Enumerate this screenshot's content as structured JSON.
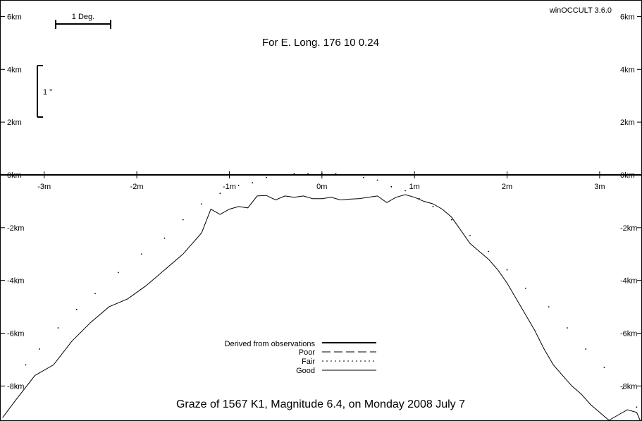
{
  "version": "winOCCULT 3.6.0",
  "header": "For E. Long.  176 10  0.24",
  "footer": "Graze of     1567   K1,  Magnitude   6.4,  on Monday  2008  July   7",
  "scale_bars": {
    "degree_label": "1 Deg.",
    "arcsec_label": "1 ''"
  },
  "legend": [
    {
      "label": "Derived from observations",
      "style": "thick"
    },
    {
      "label": "Poor",
      "style": "dashed"
    },
    {
      "label": "Fair",
      "style": "dotted"
    },
    {
      "label": "Good",
      "style": "solid"
    }
  ],
  "chart_data": {
    "type": "line",
    "xlabel": "",
    "ylabel": "",
    "x_ticks": [
      "-3m",
      "-2m",
      "-1m",
      "0m",
      "1m",
      "2m",
      "3m"
    ],
    "x_tick_values": [
      -3,
      -2,
      -1,
      0,
      1,
      2,
      3
    ],
    "y_ticks": [
      "6km",
      "4km",
      "2km",
      "0km",
      "-2km",
      "-4km",
      "-6km",
      "-8km"
    ],
    "y_tick_values": [
      6,
      4,
      2,
      0,
      -2,
      -4,
      -6,
      -8
    ],
    "xlim": [
      -3.47,
      3.45
    ],
    "ylim": [
      -9.3,
      6.6
    ],
    "series": [
      {
        "name": "Good",
        "style": "solid",
        "x": [
          -3.45,
          -3.3,
          -3.1,
          -2.9,
          -2.7,
          -2.5,
          -2.3,
          -2.1,
          -1.9,
          -1.7,
          -1.5,
          -1.3,
          -1.2,
          -1.1,
          -1.0,
          -0.9,
          -0.8,
          -0.7,
          -0.6,
          -0.5,
          -0.4,
          -0.3,
          -0.2,
          -0.1,
          0.0,
          0.1,
          0.2,
          0.3,
          0.4,
          0.5,
          0.6,
          0.7,
          0.8,
          0.9,
          1.0,
          1.1,
          1.2,
          1.3,
          1.4,
          1.5,
          1.6,
          1.7,
          1.8,
          1.9,
          2.0,
          2.1,
          2.2,
          2.3,
          2.4,
          2.5,
          2.6,
          2.7,
          2.8,
          2.9,
          3.0,
          3.1,
          3.2,
          3.3,
          3.4,
          3.45
        ],
        "y": [
          -9.2,
          -8.5,
          -7.6,
          -7.2,
          -6.3,
          -5.6,
          -5.0,
          -4.7,
          -4.2,
          -3.6,
          -3.0,
          -2.2,
          -1.3,
          -1.5,
          -1.3,
          -1.2,
          -1.25,
          -0.8,
          -0.78,
          -0.95,
          -0.8,
          -0.85,
          -0.8,
          -0.9,
          -0.9,
          -0.85,
          -0.95,
          -0.92,
          -0.9,
          -0.85,
          -0.8,
          -1.05,
          -0.85,
          -0.75,
          -0.85,
          -1.0,
          -1.1,
          -1.3,
          -1.6,
          -2.1,
          -2.6,
          -2.9,
          -3.2,
          -3.6,
          -4.1,
          -4.7,
          -5.3,
          -5.9,
          -6.6,
          -7.2,
          -7.6,
          -8.0,
          -8.3,
          -8.7,
          -9.0,
          -9.3,
          -9.1,
          -8.9,
          -9.0,
          -9.4
        ]
      },
      {
        "name": "Fair",
        "style": "dotted",
        "x": [
          -3.3,
          -3.2,
          -3.05,
          -2.85,
          -2.65,
          -2.45,
          -2.2,
          -1.95,
          -1.7,
          -1.5,
          -1.3,
          -1.1,
          -0.9,
          -0.75,
          -0.6,
          -0.45,
          -0.3,
          -0.15,
          0.0,
          0.15,
          0.3,
          0.45,
          0.6,
          0.75,
          0.9,
          1.05,
          1.2,
          1.4,
          1.6,
          1.8,
          2.0,
          2.2,
          2.45,
          2.65,
          2.85,
          3.05,
          3.25,
          3.4
        ],
        "y": [
          -8.0,
          -7.2,
          -6.6,
          -5.8,
          -5.1,
          -4.5,
          -3.7,
          -3.0,
          -2.4,
          -1.7,
          -1.1,
          -0.7,
          -0.4,
          -0.3,
          -0.1,
          0.0,
          0.05,
          0.05,
          0.05,
          0.05,
          0.0,
          -0.1,
          -0.2,
          -0.45,
          -0.6,
          -0.9,
          -1.2,
          -1.7,
          -2.3,
          -2.9,
          -3.6,
          -4.3,
          -5.0,
          -5.8,
          -6.6,
          -7.3,
          -8.1,
          -8.8
        ]
      }
    ]
  }
}
